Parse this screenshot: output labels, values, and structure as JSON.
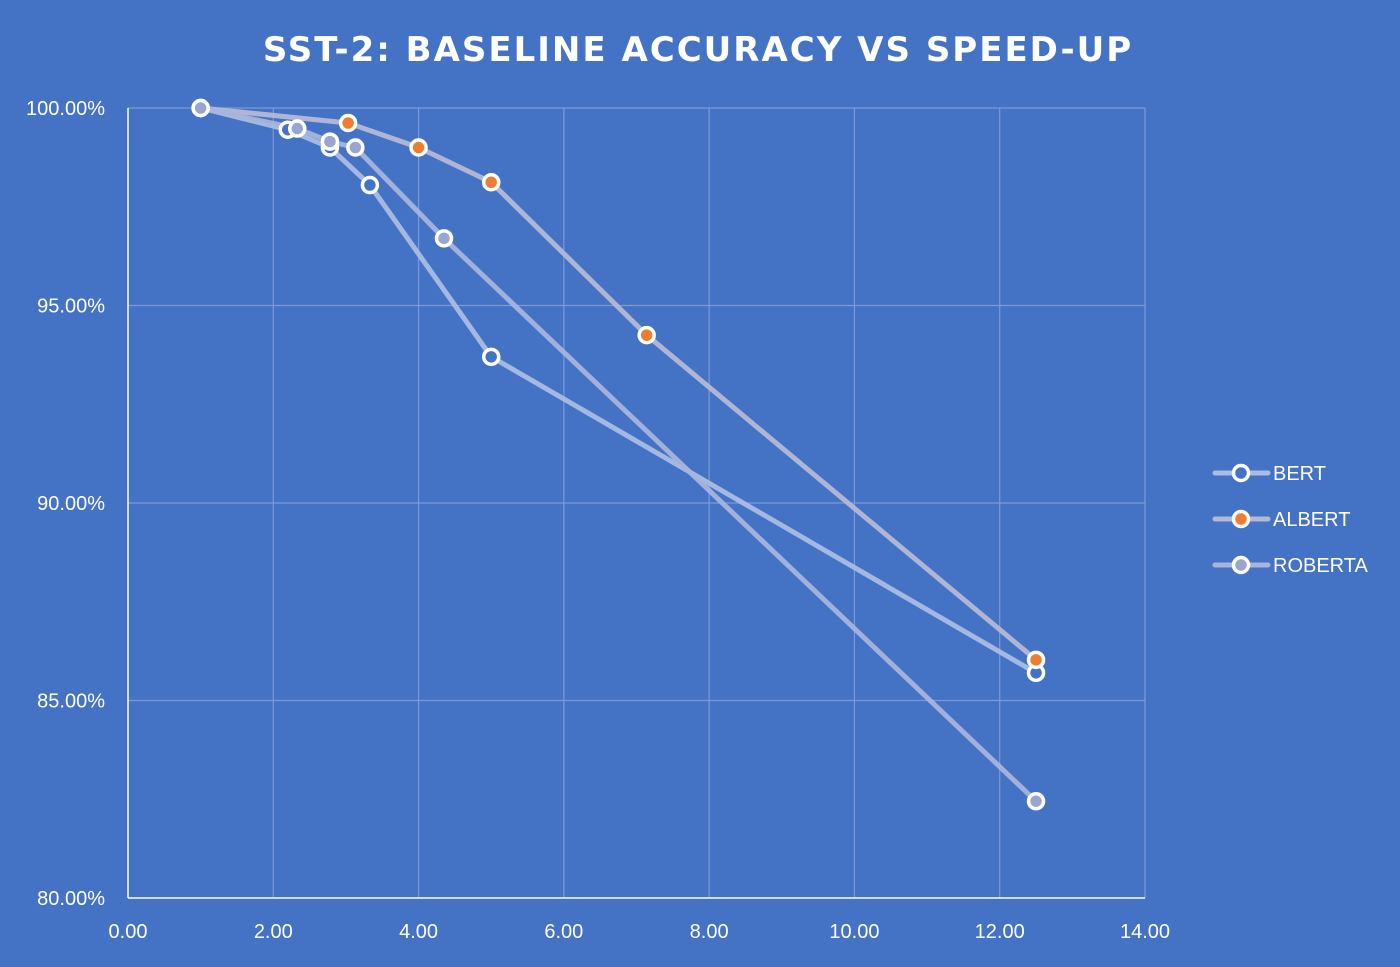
{
  "chart_data": {
    "type": "line",
    "title": "SST-2: BASELINE ACCURACY VS SPEED-UP",
    "xlabel": "",
    "ylabel": "",
    "xlim": [
      0,
      14
    ],
    "ylim": [
      0.8,
      1.0
    ],
    "x_ticks": [
      0,
      2,
      4,
      6,
      8,
      10,
      12,
      14
    ],
    "x_tick_labels": [
      "0.00",
      "2.00",
      "4.00",
      "6.00",
      "8.00",
      "10.00",
      "12.00",
      "14.00"
    ],
    "y_ticks": [
      0.8,
      0.85,
      0.9,
      0.95,
      1.0
    ],
    "y_tick_labels": [
      "80.00%",
      "85.00%",
      "90.00%",
      "95.00%",
      "100.00%"
    ],
    "grid": true,
    "legend_position": "right",
    "series": [
      {
        "name": "BERT",
        "line_color": "#a9bde3",
        "marker_fill": "#4472c4",
        "points": [
          {
            "x": 1.0,
            "y": 1.0
          },
          {
            "x": 2.2,
            "y": 0.9945
          },
          {
            "x": 2.78,
            "y": 0.99
          },
          {
            "x": 3.33,
            "y": 0.9805
          },
          {
            "x": 5.0,
            "y": 0.937
          },
          {
            "x": 12.5,
            "y": 0.857
          }
        ]
      },
      {
        "name": "ALBERT",
        "line_color": "#b5b8d4",
        "marker_fill": "#ed7d31",
        "points": [
          {
            "x": 1.0,
            "y": 1.0
          },
          {
            "x": 3.03,
            "y": 0.9962
          },
          {
            "x": 4.0,
            "y": 0.99
          },
          {
            "x": 5.0,
            "y": 0.9812
          },
          {
            "x": 7.14,
            "y": 0.9425
          },
          {
            "x": 12.5,
            "y": 0.8603
          }
        ]
      },
      {
        "name": "ROBERTA",
        "line_color": "#a8b4dc",
        "marker_fill": "#9aa6cf",
        "points": [
          {
            "x": 1.0,
            "y": 1.0
          },
          {
            "x": 2.33,
            "y": 0.9948
          },
          {
            "x": 2.78,
            "y": 0.9915
          },
          {
            "x": 3.13,
            "y": 0.99
          },
          {
            "x": 4.35,
            "y": 0.967
          },
          {
            "x": 12.5,
            "y": 0.8245
          }
        ]
      }
    ],
    "colors": {
      "background": "#4472c4",
      "gridline": "#7c9ad6",
      "axis_line": "#ffffff",
      "text": "#ffffff",
      "marker_stroke": "#ffffff"
    }
  }
}
